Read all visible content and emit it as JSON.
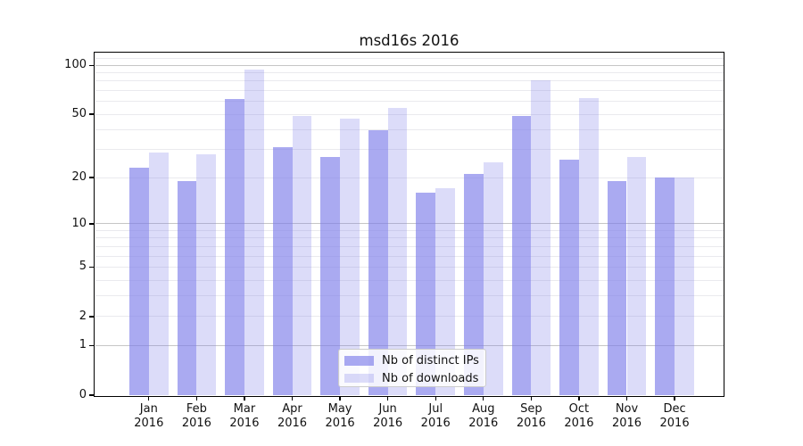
{
  "figure": {
    "background": "#ffffff"
  },
  "chart_data": {
    "type": "bar",
    "title": "msd16s 2016",
    "categories": [
      "Jan",
      "Feb",
      "Mar",
      "Apr",
      "May",
      "Jun",
      "Jul",
      "Aug",
      "Sep",
      "Oct",
      "Nov",
      "Dec"
    ],
    "category_year": "2016",
    "series": [
      {
        "name": "Nb of distinct IPs",
        "values": [
          23,
          19,
          62,
          31,
          27,
          40,
          16,
          21,
          49,
          26,
          19,
          20
        ],
        "fill": "rgba(125,125,234,0.65)",
        "color_hex": "#aaaaf1"
      },
      {
        "name": "Nb of downloads",
        "values": [
          29,
          28,
          94,
          49,
          47,
          55,
          17,
          25,
          81,
          63,
          27,
          20
        ],
        "fill": "rgba(125,125,234,0.27)",
        "color_hex": "#dcdcf9"
      }
    ],
    "xlabel": "",
    "ylabel": "",
    "yscale": "symlog (position ~ ln(1+v))",
    "ylim": [
      0,
      119
    ],
    "yticks_labeled": [
      0,
      1,
      2,
      5,
      10,
      20,
      50,
      100
    ],
    "grid": {
      "major_values": [
        1,
        10,
        100
      ],
      "minor_values": [
        2,
        3,
        4,
        5,
        6,
        7,
        8,
        9,
        20,
        30,
        40,
        50,
        60,
        70,
        80,
        90,
        110
      ],
      "major_color": "#c6c6c6",
      "minor_color": "#eaeaee",
      "orientation": "horizontal"
    },
    "legend_position": "lower center",
    "spine_color": "#000000",
    "text_color": "#111111"
  }
}
